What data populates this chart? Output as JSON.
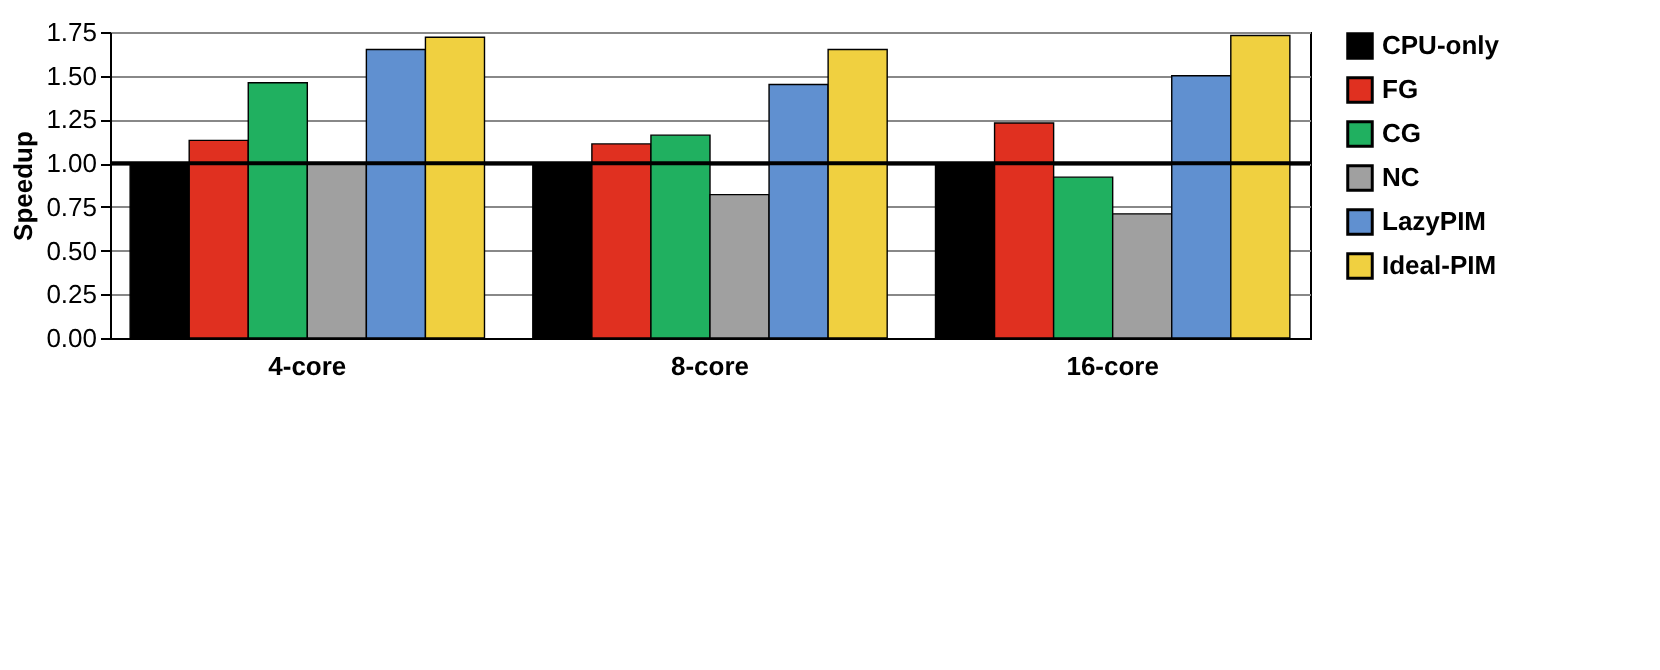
{
  "chart_data": {
    "type": "bar",
    "ylabel": "Speedup",
    "categories": [
      "4-core",
      "8-core",
      "16-core"
    ],
    "series": [
      {
        "name": "CPU-only",
        "color": "#000000",
        "values": [
          1.0,
          1.0,
          1.0
        ]
      },
      {
        "name": "FG",
        "color": "#e03020",
        "values": [
          1.13,
          1.11,
          1.23
        ]
      },
      {
        "name": "CG",
        "color": "#20b060",
        "values": [
          1.46,
          1.16,
          0.92
        ]
      },
      {
        "name": "NC",
        "color": "#a0a0a0",
        "values": [
          1.0,
          0.82,
          0.71
        ]
      },
      {
        "name": "LazyPIM",
        "color": "#6090d0",
        "values": [
          1.65,
          1.45,
          1.5
        ]
      },
      {
        "name": "Ideal-PIM",
        "color": "#f0d040",
        "values": [
          1.72,
          1.65,
          1.73
        ]
      }
    ],
    "ylim": [
      0,
      1.75
    ],
    "yticks": [
      {
        "value": 0,
        "label": "0.00"
      },
      0.25,
      {
        "value": 0.5,
        "label": "0.50"
      },
      0.75,
      {
        "value": 1,
        "label": "1.00"
      },
      1.25,
      {
        "value": 1.5,
        "label": "1.50"
      },
      1.75
    ],
    "ref_lines": [
      {
        "axis": "y",
        "value": 1.0,
        "label": null,
        "color": "#000000"
      }
    ],
    "grid": "y",
    "legend": "right"
  }
}
